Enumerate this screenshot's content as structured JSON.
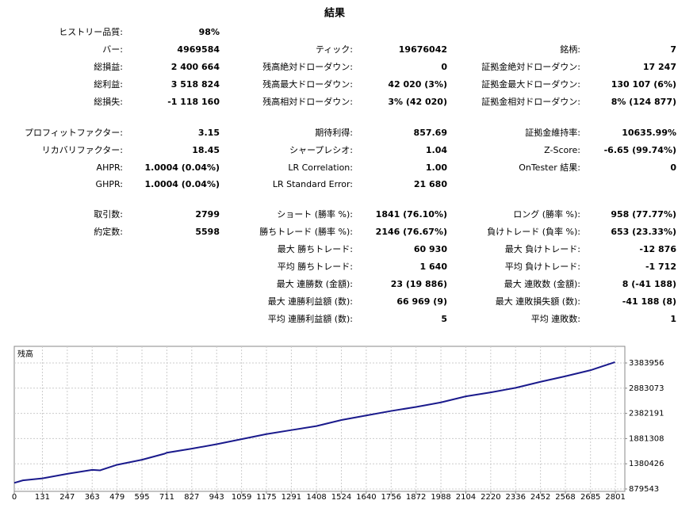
{
  "report": {
    "title": "結果",
    "rows": [
      [
        {
          "label": "ヒストリー品質:",
          "value": "98%"
        },
        null,
        null
      ],
      [
        {
          "label": "バー:",
          "value": "4969584"
        },
        {
          "label": "ティック:",
          "value": "19676042"
        },
        {
          "label": "銘柄:",
          "value": "7"
        }
      ],
      [
        {
          "label": "総損益:",
          "value": "2 400 664"
        },
        {
          "label": "残高絶対ドローダウン:",
          "value": "0"
        },
        {
          "label": "証拠金絶対ドローダウン:",
          "value": "17 247"
        }
      ],
      [
        {
          "label": "総利益:",
          "value": "3 518 824"
        },
        {
          "label": "残高最大ドローダウン:",
          "value": "42 020 (3%)"
        },
        {
          "label": "証拠金最大ドローダウン:",
          "value": "130 107 (6%)"
        }
      ],
      [
        {
          "label": "総損失:",
          "value": "-1 118 160"
        },
        {
          "label": "残高相対ドローダウン:",
          "value": "3% (42 020)"
        },
        {
          "label": "証拠金相対ドローダウン:",
          "value": "8% (124 877)"
        }
      ],
      [
        {
          "label": "プロフィットファクター:",
          "value": "3.15"
        },
        {
          "label": "期待利得:",
          "value": "857.69"
        },
        {
          "label": "証拠金維持率:",
          "value": "10635.99%"
        }
      ],
      [
        {
          "label": "リカバリファクター:",
          "value": "18.45"
        },
        {
          "label": "シャープレシオ:",
          "value": "1.04"
        },
        {
          "label": "Z-Score:",
          "value": "-6.65 (99.74%)"
        }
      ],
      [
        {
          "label": "AHPR:",
          "value": "1.0004 (0.04%)"
        },
        {
          "label": "LR Correlation:",
          "value": "1.00"
        },
        {
          "label": "OnTester 結果:",
          "value": "0"
        }
      ],
      [
        {
          "label": "GHPR:",
          "value": "1.0004 (0.04%)"
        },
        {
          "label": "LR Standard Error:",
          "value": "21 680"
        },
        null
      ],
      [
        {
          "label": "取引数:",
          "value": "2799"
        },
        {
          "label": "ショート (勝率 %):",
          "value": "1841 (76.10%)"
        },
        {
          "label": "ロング (勝率 %):",
          "value": "958 (77.77%)"
        }
      ],
      [
        {
          "label": "約定数:",
          "value": "5598"
        },
        {
          "label": "勝ちトレード (勝率 %):",
          "value": "2146 (76.67%)"
        },
        {
          "label": "負けトレード (負率 %):",
          "value": "653 (23.33%)"
        }
      ],
      [
        null,
        {
          "label": "最大 勝ちトレード:",
          "value": "60 930"
        },
        {
          "label": "最大 負けトレード:",
          "value": "-12 876"
        }
      ],
      [
        null,
        {
          "label": "平均 勝ちトレード:",
          "value": "1 640"
        },
        {
          "label": "平均 負けトレード:",
          "value": "-1 712"
        }
      ],
      [
        null,
        {
          "label": "最大 連勝数 (金額):",
          "value": "23 (19 886)"
        },
        {
          "label": "最大 連敗数 (金額):",
          "value": "8 (-41 188)"
        }
      ],
      [
        null,
        {
          "label": "最大 連勝利益額 (数):",
          "value": "66 969 (9)"
        },
        {
          "label": "最大 連敗損失額 (数):",
          "value": "-41 188 (8)"
        }
      ],
      [
        null,
        {
          "label": "平均 連勝利益額 (数):",
          "value": "5"
        },
        {
          "label": "平均 連敗数:",
          "value": "1"
        }
      ]
    ]
  },
  "chart_data": {
    "type": "line",
    "title": "残高",
    "x": [
      0,
      40,
      131,
      247,
      363,
      400,
      479,
      595,
      700,
      711,
      827,
      943,
      1059,
      1175,
      1291,
      1408,
      1524,
      1640,
      1756,
      1872,
      1988,
      2104,
      2220,
      2336,
      2452,
      2568,
      2685,
      2799
    ],
    "series": [
      {
        "color": "#1a1a8c",
        "values": [
          1000000,
          1050000,
          1090000,
          1180000,
          1260000,
          1250000,
          1360000,
          1460000,
          1580000,
          1600000,
          1680000,
          1770000,
          1870000,
          1970000,
          2050000,
          2130000,
          2250000,
          2340000,
          2430000,
          2510000,
          2600000,
          2720000,
          2800000,
          2890000,
          3010000,
          3120000,
          3240000,
          3400664
        ]
      }
    ],
    "xlim": [
      0,
      2845
    ],
    "ylim": [
      832000,
      3715000
    ],
    "xticks": [
      0,
      131,
      247,
      363,
      479,
      595,
      711,
      827,
      943,
      1059,
      1175,
      1291,
      1408,
      1524,
      1640,
      1756,
      1872,
      1988,
      2104,
      2220,
      2336,
      2452,
      2568,
      2685,
      2801
    ],
    "yticks": [
      879543,
      1380426,
      1881308,
      2382191,
      2883073,
      3383956
    ],
    "grid": true
  }
}
